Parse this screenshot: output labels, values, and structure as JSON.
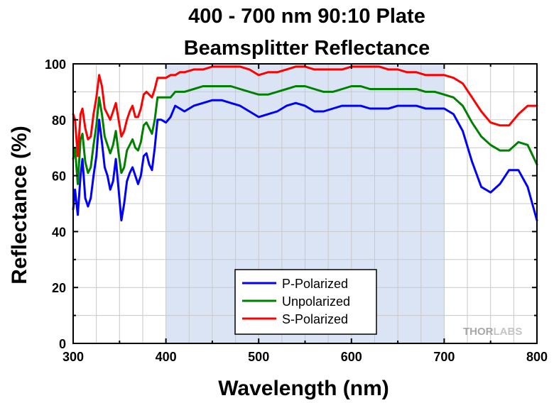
{
  "chart_data": {
    "type": "line",
    "title_lines": [
      "400 - 700 nm 90:10 Plate",
      "Beamsplitter Reflectance"
    ],
    "xlabel": "Wavelength (nm)",
    "ylabel": "Reflectance (%)",
    "xlim": [
      300,
      800
    ],
    "ylim": [
      0,
      100
    ],
    "xticks": [
      300,
      400,
      500,
      600,
      700,
      800
    ],
    "yticks": [
      0,
      20,
      40,
      60,
      80,
      100
    ],
    "grid": true,
    "highlight_band": [
      400,
      700
    ],
    "highlight_color": "#dbe4f4",
    "legend_position": "bottom-center",
    "watermark": "THORLABS",
    "series": [
      {
        "name": "P-Polarized",
        "color": "#0000ff",
        "points": [
          [
            300,
            48
          ],
          [
            302,
            55
          ],
          [
            305,
            46
          ],
          [
            308,
            60
          ],
          [
            310,
            66
          ],
          [
            313,
            52
          ],
          [
            316,
            49
          ],
          [
            319,
            52
          ],
          [
            322,
            60
          ],
          [
            325,
            67
          ],
          [
            328,
            80
          ],
          [
            331,
            72
          ],
          [
            334,
            63
          ],
          [
            337,
            60
          ],
          [
            340,
            55
          ],
          [
            343,
            58
          ],
          [
            346,
            66
          ],
          [
            349,
            55
          ],
          [
            352,
            44
          ],
          [
            355,
            50
          ],
          [
            358,
            58
          ],
          [
            361,
            61
          ],
          [
            364,
            63
          ],
          [
            367,
            60
          ],
          [
            370,
            57
          ],
          [
            373,
            60
          ],
          [
            376,
            67
          ],
          [
            379,
            68
          ],
          [
            382,
            64
          ],
          [
            385,
            62
          ],
          [
            388,
            70
          ],
          [
            391,
            80
          ],
          [
            395,
            80
          ],
          [
            400,
            79
          ],
          [
            405,
            81
          ],
          [
            410,
            85
          ],
          [
            415,
            84
          ],
          [
            420,
            83
          ],
          [
            430,
            85
          ],
          [
            440,
            86
          ],
          [
            450,
            87
          ],
          [
            460,
            87
          ],
          [
            470,
            86
          ],
          [
            480,
            85
          ],
          [
            490,
            83
          ],
          [
            500,
            81
          ],
          [
            510,
            82
          ],
          [
            520,
            83
          ],
          [
            530,
            85
          ],
          [
            540,
            86
          ],
          [
            550,
            85
          ],
          [
            560,
            83
          ],
          [
            570,
            83
          ],
          [
            580,
            84
          ],
          [
            590,
            85
          ],
          [
            600,
            85
          ],
          [
            610,
            85
          ],
          [
            620,
            84
          ],
          [
            630,
            84
          ],
          [
            640,
            84
          ],
          [
            650,
            85
          ],
          [
            660,
            85
          ],
          [
            670,
            85
          ],
          [
            680,
            84
          ],
          [
            690,
            84
          ],
          [
            700,
            84
          ],
          [
            710,
            82
          ],
          [
            720,
            76
          ],
          [
            730,
            65
          ],
          [
            740,
            56
          ],
          [
            750,
            54
          ],
          [
            760,
            57
          ],
          [
            770,
            62
          ],
          [
            780,
            62
          ],
          [
            790,
            56
          ],
          [
            800,
            44
          ]
        ]
      },
      {
        "name": "Unpolarized",
        "color": "#008000",
        "points": [
          [
            300,
            66
          ],
          [
            302,
            70
          ],
          [
            305,
            57
          ],
          [
            308,
            73
          ],
          [
            310,
            75
          ],
          [
            313,
            65
          ],
          [
            316,
            61
          ],
          [
            319,
            63
          ],
          [
            322,
            71
          ],
          [
            325,
            78
          ],
          [
            328,
            88
          ],
          [
            331,
            82
          ],
          [
            334,
            74
          ],
          [
            337,
            71
          ],
          [
            340,
            68
          ],
          [
            343,
            71
          ],
          [
            346,
            76
          ],
          [
            349,
            68
          ],
          [
            352,
            61
          ],
          [
            355,
            63
          ],
          [
            358,
            69
          ],
          [
            361,
            71
          ],
          [
            364,
            73
          ],
          [
            367,
            70
          ],
          [
            370,
            69
          ],
          [
            373,
            72
          ],
          [
            376,
            78
          ],
          [
            379,
            79
          ],
          [
            382,
            77
          ],
          [
            385,
            75
          ],
          [
            388,
            80
          ],
          [
            391,
            88
          ],
          [
            395,
            88
          ],
          [
            400,
            88
          ],
          [
            405,
            88
          ],
          [
            410,
            90
          ],
          [
            415,
            90
          ],
          [
            420,
            90
          ],
          [
            430,
            91
          ],
          [
            440,
            92
          ],
          [
            450,
            92
          ],
          [
            460,
            92
          ],
          [
            470,
            92
          ],
          [
            480,
            91
          ],
          [
            490,
            90
          ],
          [
            500,
            89
          ],
          [
            510,
            89
          ],
          [
            520,
            90
          ],
          [
            530,
            91
          ],
          [
            540,
            92
          ],
          [
            550,
            92
          ],
          [
            560,
            91
          ],
          [
            570,
            90
          ],
          [
            580,
            90
          ],
          [
            590,
            91
          ],
          [
            600,
            92
          ],
          [
            610,
            92
          ],
          [
            620,
            91
          ],
          [
            630,
            91
          ],
          [
            640,
            91
          ],
          [
            650,
            91
          ],
          [
            660,
            91
          ],
          [
            670,
            91
          ],
          [
            680,
            90
          ],
          [
            690,
            90
          ],
          [
            700,
            89
          ],
          [
            710,
            88
          ],
          [
            720,
            85
          ],
          [
            730,
            79
          ],
          [
            740,
            74
          ],
          [
            750,
            71
          ],
          [
            760,
            69
          ],
          [
            770,
            69
          ],
          [
            780,
            72
          ],
          [
            790,
            71
          ],
          [
            800,
            64
          ]
        ]
      },
      {
        "name": "S-Polarized",
        "color": "#ff0000",
        "points": [
          [
            300,
            82
          ],
          [
            302,
            80
          ],
          [
            305,
            67
          ],
          [
            308,
            82
          ],
          [
            310,
            84
          ],
          [
            313,
            77
          ],
          [
            316,
            73
          ],
          [
            319,
            74
          ],
          [
            322,
            82
          ],
          [
            325,
            88
          ],
          [
            328,
            96
          ],
          [
            331,
            92
          ],
          [
            334,
            84
          ],
          [
            337,
            82
          ],
          [
            340,
            80
          ],
          [
            343,
            83
          ],
          [
            346,
            86
          ],
          [
            349,
            80
          ],
          [
            352,
            74
          ],
          [
            355,
            76
          ],
          [
            358,
            80
          ],
          [
            361,
            83
          ],
          [
            364,
            85
          ],
          [
            367,
            81
          ],
          [
            370,
            81
          ],
          [
            373,
            84
          ],
          [
            376,
            89
          ],
          [
            379,
            90
          ],
          [
            382,
            89
          ],
          [
            385,
            88
          ],
          [
            388,
            91
          ],
          [
            391,
            95
          ],
          [
            395,
            95
          ],
          [
            400,
            95
          ],
          [
            405,
            96
          ],
          [
            410,
            96
          ],
          [
            415,
            97
          ],
          [
            420,
            97
          ],
          [
            430,
            98
          ],
          [
            440,
            98
          ],
          [
            450,
            99
          ],
          [
            460,
            99
          ],
          [
            470,
            99
          ],
          [
            480,
            99
          ],
          [
            490,
            98
          ],
          [
            500,
            96
          ],
          [
            510,
            97
          ],
          [
            520,
            97
          ],
          [
            530,
            98
          ],
          [
            540,
            99
          ],
          [
            550,
            99
          ],
          [
            560,
            98
          ],
          [
            570,
            98
          ],
          [
            580,
            98
          ],
          [
            590,
            98
          ],
          [
            600,
            99
          ],
          [
            610,
            99
          ],
          [
            620,
            99
          ],
          [
            630,
            99
          ],
          [
            640,
            98
          ],
          [
            650,
            98
          ],
          [
            660,
            97
          ],
          [
            670,
            97
          ],
          [
            680,
            96
          ],
          [
            690,
            96
          ],
          [
            700,
            96
          ],
          [
            710,
            95
          ],
          [
            720,
            93
          ],
          [
            730,
            88
          ],
          [
            740,
            83
          ],
          [
            750,
            79
          ],
          [
            760,
            78
          ],
          [
            770,
            78
          ],
          [
            780,
            82
          ],
          [
            790,
            85
          ],
          [
            800,
            85
          ]
        ]
      }
    ]
  }
}
